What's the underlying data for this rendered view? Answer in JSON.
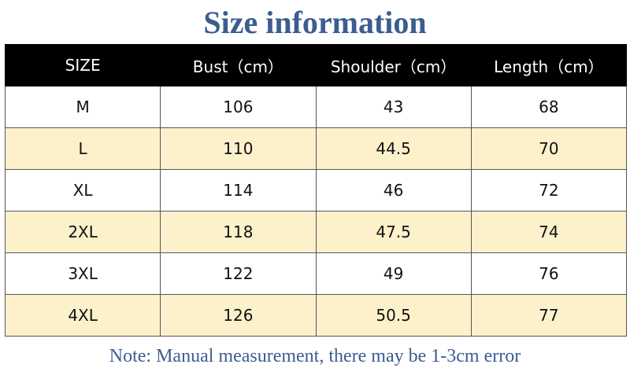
{
  "header": {
    "title": "Size information"
  },
  "table": {
    "columns": [
      "SIZE",
      "Bust（cm）",
      "Shoulder（cm）",
      "Length（cm）"
    ],
    "rows": [
      [
        "M",
        "106",
        "43",
        "68"
      ],
      [
        "L",
        "110",
        "44.5",
        "70"
      ],
      [
        "XL",
        "114",
        "46",
        "72"
      ],
      [
        "2XL",
        "118",
        "47.5",
        "74"
      ],
      [
        "3XL",
        "122",
        "49",
        "76"
      ],
      [
        "4XL",
        "126",
        "50.5",
        "77"
      ]
    ]
  },
  "note": "Note: Manual measurement, there may be 1-3cm error"
}
